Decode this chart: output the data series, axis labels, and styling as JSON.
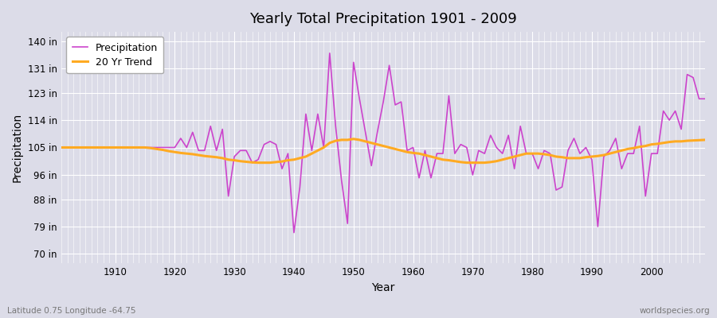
{
  "title": "Yearly Total Precipitation 1901 - 2009",
  "xlabel": "Year",
  "ylabel": "Precipitation",
  "subtitle_left": "Latitude 0.75 Longitude -64.75",
  "subtitle_right": "worldspecies.org",
  "bg_color": "#dcdce8",
  "plot_bg_color": "#dcdce8",
  "line_color": "#cc44cc",
  "trend_color": "#ffaa22",
  "ytick_labels": [
    "70 in",
    "79 in",
    "88 in",
    "96 in",
    "105 in",
    "114 in",
    "123 in",
    "131 in",
    "140 in"
  ],
  "ytick_values": [
    70,
    79,
    88,
    96,
    105,
    114,
    123,
    131,
    140
  ],
  "ylim": [
    67,
    143
  ],
  "xlim": [
    1901,
    2009
  ],
  "years": [
    1901,
    1902,
    1903,
    1904,
    1905,
    1906,
    1907,
    1908,
    1909,
    1910,
    1911,
    1912,
    1913,
    1914,
    1915,
    1916,
    1917,
    1918,
    1919,
    1920,
    1921,
    1922,
    1923,
    1924,
    1925,
    1926,
    1927,
    1928,
    1929,
    1930,
    1931,
    1932,
    1933,
    1934,
    1935,
    1936,
    1937,
    1938,
    1939,
    1940,
    1941,
    1942,
    1943,
    1944,
    1945,
    1946,
    1947,
    1948,
    1949,
    1950,
    1951,
    1952,
    1953,
    1954,
    1955,
    1956,
    1957,
    1958,
    1959,
    1960,
    1961,
    1962,
    1963,
    1964,
    1965,
    1966,
    1967,
    1968,
    1969,
    1970,
    1971,
    1972,
    1973,
    1974,
    1975,
    1976,
    1977,
    1978,
    1979,
    1980,
    1981,
    1982,
    1983,
    1984,
    1985,
    1986,
    1987,
    1988,
    1989,
    1990,
    1991,
    1992,
    1993,
    1994,
    1995,
    1996,
    1997,
    1998,
    1999,
    2000,
    2001,
    2002,
    2003,
    2004,
    2005,
    2006,
    2007,
    2008,
    2009
  ],
  "precip": [
    105,
    105,
    105,
    105,
    105,
    105,
    105,
    105,
    105,
    105,
    105,
    105,
    105,
    105,
    105,
    105,
    105,
    105,
    105,
    105,
    108,
    105,
    110,
    104,
    104,
    112,
    104,
    111,
    89,
    102,
    104,
    104,
    100,
    101,
    106,
    107,
    106,
    98,
    103,
    77,
    92,
    116,
    104,
    116,
    105,
    136,
    112,
    94,
    80,
    133,
    121,
    110,
    99,
    110,
    120,
    132,
    119,
    120,
    104,
    105,
    95,
    104,
    95,
    103,
    103,
    122,
    103,
    106,
    105,
    96,
    104,
    103,
    109,
    105,
    103,
    109,
    98,
    112,
    103,
    103,
    98,
    104,
    103,
    91,
    92,
    104,
    108,
    103,
    105,
    101,
    79,
    102,
    104,
    108,
    98,
    103,
    103,
    112,
    89,
    103,
    103,
    117,
    114,
    117,
    111,
    129,
    128,
    121,
    121
  ],
  "trend": [
    105,
    105,
    105,
    105,
    105,
    105,
    105,
    105,
    105,
    105,
    105,
    105,
    105,
    105,
    105,
    104.8,
    104.5,
    104.2,
    103.8,
    103.5,
    103.2,
    103,
    102.8,
    102.5,
    102.2,
    102,
    101.8,
    101.5,
    101,
    100.8,
    100.5,
    100.3,
    100.1,
    100,
    100,
    100,
    100.2,
    100.4,
    100.8,
    101,
    101.5,
    102,
    103,
    104,
    105,
    106.5,
    107.2,
    107.5,
    107.5,
    107.8,
    107.5,
    107,
    106.5,
    106,
    105.5,
    105,
    104.5,
    104,
    103.5,
    103.2,
    103,
    102.5,
    102,
    101.5,
    101,
    100.8,
    100.5,
    100.2,
    100,
    100,
    100,
    100,
    100.2,
    100.5,
    101,
    101.5,
    102,
    102.5,
    103,
    103,
    103,
    102.8,
    102.5,
    102,
    101.8,
    101.5,
    101.5,
    101.5,
    101.8,
    102,
    102.2,
    102.5,
    103,
    103.5,
    104,
    104.5,
    104.8,
    105.2,
    105.5,
    106,
    106.2,
    106.5,
    106.8,
    107,
    107,
    107.2,
    107.3,
    107.4,
    107.5
  ]
}
